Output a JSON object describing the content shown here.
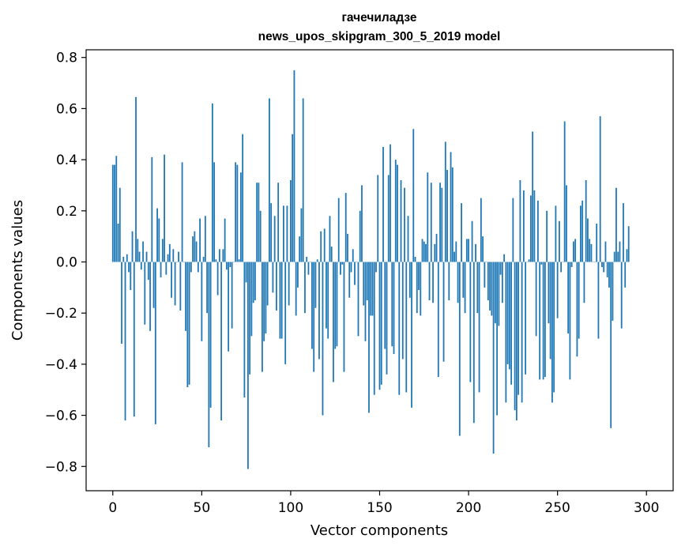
{
  "chart_data": {
    "type": "bar",
    "title_line1": "гачечиладзе",
    "title_line2": "news_upos_skipgram_300_5_2019 model",
    "xlabel": "Vector components",
    "ylabel": "Components values",
    "xlim": [
      -15,
      315
    ],
    "ylim": [
      -0.895,
      0.83
    ],
    "xticks": [
      0,
      50,
      100,
      150,
      200,
      250,
      300
    ],
    "yticks": [
      -0.8,
      -0.6,
      -0.4,
      -0.2,
      0.0,
      0.2,
      0.4,
      0.6,
      0.8
    ],
    "ytick_labels": [
      "−0.8",
      "−0.6",
      "−0.4",
      "−0.2",
      "0.0",
      "0.2",
      "0.4",
      "0.6",
      "0.8"
    ],
    "bar_color": "#1f77b4",
    "values": [
      0.38,
      0.38,
      0.415,
      0.15,
      0.29,
      -0.32,
      0.02,
      -0.62,
      0.03,
      -0.04,
      -0.11,
      0.12,
      -0.605,
      0.645,
      0.09,
      0.04,
      -0.03,
      0.08,
      -0.245,
      0.04,
      -0.07,
      -0.27,
      0.41,
      -0.18,
      -0.635,
      0.21,
      0.17,
      -0.06,
      0.09,
      0.42,
      -0.05,
      0.03,
      0.07,
      -0.14,
      0.05,
      -0.17,
      0.0,
      0.04,
      -0.19,
      0.39,
      0.0,
      -0.27,
      -0.49,
      -0.48,
      -0.04,
      0.1,
      0.12,
      0.08,
      -0.04,
      0.17,
      -0.31,
      0.02,
      0.18,
      -0.2,
      -0.725,
      -0.57,
      0.62,
      0.39,
      0.01,
      -0.13,
      0.05,
      -0.62,
      0.05,
      0.17,
      -0.03,
      -0.35,
      -0.02,
      -0.26,
      0.0,
      0.39,
      0.38,
      0.01,
      0.35,
      0.5,
      -0.53,
      -0.08,
      -0.81,
      -0.44,
      -0.29,
      -0.16,
      -0.15,
      0.31,
      0.31,
      0.2,
      -0.43,
      -0.31,
      -0.28,
      -0.17,
      0.64,
      0.23,
      -0.12,
      0.18,
      -0.19,
      0.31,
      -0.3,
      -0.3,
      0.22,
      -0.4,
      0.22,
      -0.17,
      0.32,
      0.5,
      0.75,
      -0.21,
      -0.1,
      0.1,
      0.21,
      0.64,
      -0.2,
      0.02,
      -0.05,
      0.0,
      -0.34,
      -0.43,
      -0.18,
      0.01,
      -0.38,
      0.12,
      -0.6,
      0.13,
      -0.26,
      -0.3,
      0.18,
      0.06,
      -0.47,
      -0.34,
      -0.33,
      0.25,
      -0.05,
      -0.01,
      -0.43,
      0.27,
      0.11,
      -0.14,
      -0.04,
      0.05,
      -0.09,
      0.0,
      -0.29,
      0.2,
      0.3,
      -0.17,
      -0.31,
      -0.15,
      -0.59,
      -0.21,
      -0.21,
      -0.52,
      -0.04,
      0.34,
      -0.5,
      -0.48,
      0.45,
      -0.34,
      -0.44,
      0.34,
      0.46,
      -0.33,
      -0.36,
      0.4,
      0.38,
      -0.52,
      0.32,
      -0.38,
      0.29,
      -0.51,
      0.18,
      -0.14,
      -0.57,
      0.52,
      0.02,
      -0.2,
      -0.11,
      -0.21,
      0.09,
      0.08,
      0.07,
      0.35,
      -0.15,
      0.31,
      -0.16,
      0.07,
      0.11,
      -0.45,
      0.31,
      0.29,
      -0.39,
      0.47,
      0.36,
      -0.15,
      0.43,
      0.37,
      0.04,
      0.08,
      -0.16,
      -0.68,
      0.23,
      -0.14,
      -0.2,
      0.09,
      0.09,
      -0.47,
      0.16,
      -0.63,
      0.07,
      -0.2,
      -0.51,
      0.25,
      0.1,
      -0.1,
      0.0,
      -0.15,
      -0.19,
      -0.21,
      -0.75,
      -0.24,
      -0.6,
      -0.25,
      -0.05,
      -0.16,
      0.03,
      -0.55,
      -0.4,
      -0.42,
      -0.48,
      0.25,
      -0.58,
      -0.62,
      -0.52,
      0.32,
      -0.55,
      0.28,
      -0.44,
      0.0,
      0.01,
      0.26,
      0.51,
      0.28,
      -0.29,
      0.24,
      -0.46,
      -0.01,
      -0.46,
      -0.45,
      0.2,
      -0.24,
      -0.38,
      -0.55,
      -0.51,
      0.22,
      -0.22,
      0.16,
      -0.04,
      0.0,
      0.55,
      0.3,
      -0.28,
      -0.46,
      -0.02,
      0.08,
      0.09,
      -0.37,
      -0.3,
      0.22,
      0.24,
      -0.16,
      0.32,
      0.17,
      0.09,
      0.07,
      0.0,
      0.0,
      0.15,
      -0.3,
      0.57,
      -0.02,
      -0.04,
      0.08,
      -0.06,
      -0.1,
      -0.65,
      -0.23,
      0.04,
      0.29,
      0.04,
      0.08,
      -0.26,
      0.23,
      -0.1,
      0.05,
      0.14
    ]
  }
}
